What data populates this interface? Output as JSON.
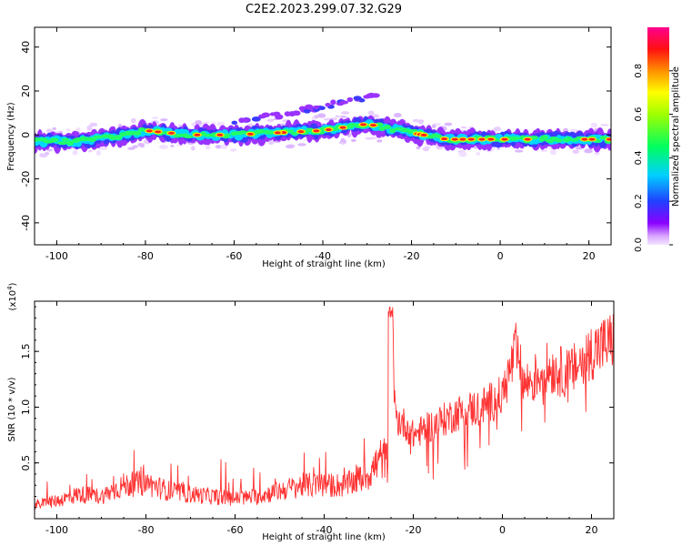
{
  "title": "C2E2.2023.299.07.32.G29",
  "chart_data": [
    {
      "type": "heatmap",
      "xlabel": "Height of straight line (km)",
      "ylabel": "Frequency (Hz)",
      "xlim": [
        -105,
        25
      ],
      "ylim": [
        -50,
        49
      ],
      "xticks": [
        -100,
        -80,
        -60,
        -40,
        -20,
        0,
        20
      ],
      "xtick_labels": [
        "-100",
        "-80",
        "-60",
        "-40",
        "-20",
        "0",
        "20"
      ],
      "yticks": [
        -40,
        -20,
        0,
        20,
        40
      ],
      "ytick_labels": [
        "-40",
        "-20",
        "0",
        "20",
        "40"
      ],
      "colorbar": {
        "label": "Normalized spectral amplitude",
        "range": [
          0,
          1
        ],
        "ticks": [
          0.0,
          0.2,
          0.4,
          0.6,
          0.8
        ],
        "tick_labels": [
          "0.0",
          "0.2",
          "0.4",
          "0.6",
          "0.8"
        ]
      },
      "main_trace": [
        {
          "x": -105,
          "y": -3
        },
        {
          "x": -95,
          "y": -3
        },
        {
          "x": -85,
          "y": 0
        },
        {
          "x": -80,
          "y": 2
        },
        {
          "x": -70,
          "y": 0
        },
        {
          "x": -60,
          "y": 0
        },
        {
          "x": -50,
          "y": 1
        },
        {
          "x": -40,
          "y": 2
        },
        {
          "x": -30,
          "y": 5
        },
        {
          "x": -25,
          "y": 3
        },
        {
          "x": -20,
          "y": 1
        },
        {
          "x": -12,
          "y": -2
        },
        {
          "x": 0,
          "y": -2
        },
        {
          "x": 10,
          "y": -2
        },
        {
          "x": 25,
          "y": -2
        }
      ],
      "secondary_trace": [
        {
          "x": -60,
          "y": 6
        },
        {
          "x": -50,
          "y": 9
        },
        {
          "x": -40,
          "y": 13
        },
        {
          "x": -30,
          "y": 17
        },
        {
          "x": -28,
          "y": 19
        }
      ]
    },
    {
      "type": "line",
      "xlabel": "Height of straight line (km)",
      "ylabel": "SNR (10 * v/v)",
      "y_multiplier": "(x10⁴)",
      "y_multiplier_base": "(x10",
      "y_multiplier_exp": "4",
      "y_multiplier_close": ")",
      "xlim": [
        -105,
        25
      ],
      "ylim": [
        0,
        1.95
      ],
      "xticks": [
        -100,
        -80,
        -60,
        -40,
        -20,
        0,
        20
      ],
      "xtick_labels": [
        "-100",
        "-80",
        "-60",
        "-40",
        "-20",
        "0",
        "20"
      ],
      "yticks": [
        0.5,
        1.0,
        1.5
      ],
      "ytick_labels": [
        "0.5",
        "1.0",
        "1.5"
      ],
      "series": [
        {
          "color": "#ff3333",
          "x": [
            -105,
            -100,
            -95,
            -90,
            -85,
            -80,
            -75,
            -70,
            -65,
            -60,
            -55,
            -50,
            -45,
            -40,
            -35,
            -30,
            -27,
            -25.5,
            -25,
            -24,
            -22,
            -20,
            -15,
            -10,
            -5,
            0,
            3,
            5,
            10,
            15,
            20,
            25
          ],
          "y": [
            0.12,
            0.16,
            0.22,
            0.2,
            0.3,
            0.32,
            0.25,
            0.22,
            0.2,
            0.18,
            0.2,
            0.25,
            0.3,
            0.3,
            0.3,
            0.4,
            0.55,
            0.5,
            1.9,
            0.9,
            0.85,
            0.75,
            0.85,
            0.95,
            1.0,
            1.1,
            1.5,
            1.2,
            1.35,
            1.3,
            1.5,
            1.6
          ]
        }
      ]
    }
  ]
}
